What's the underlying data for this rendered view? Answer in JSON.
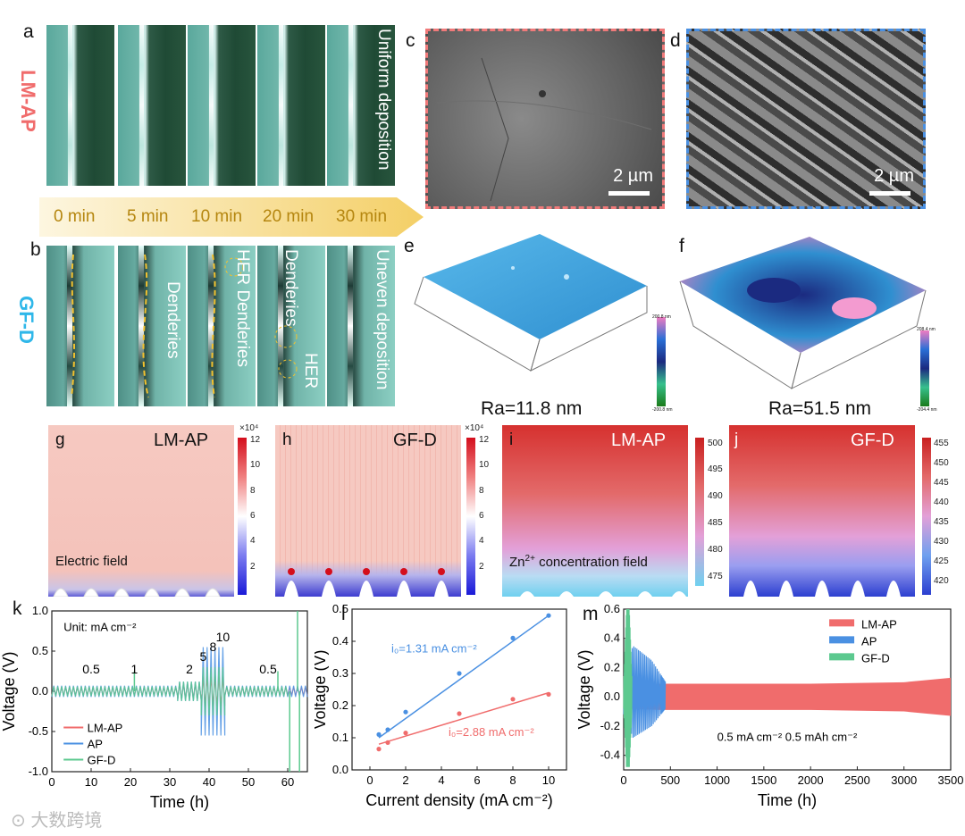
{
  "panels": {
    "a": "a",
    "b": "b",
    "c": "c",
    "d": "d",
    "e": "e",
    "f": "f",
    "g": "g",
    "h": "h",
    "i": "i",
    "j": "j",
    "k": "k",
    "l": "l",
    "m": "m"
  },
  "row_labels": {
    "top": "LM-AP",
    "bottom": "GF-D"
  },
  "colors": {
    "lmap": "#f06c6c",
    "gfd": "#2fb7e9",
    "ap": "#4a90e2",
    "gfd_line": "#5cc98f",
    "time_text": "#b5860f"
  },
  "time_labels": [
    "0 min",
    "5 min",
    "10 min",
    "20 min",
    "30 min"
  ],
  "micro_a": {
    "text": "Uniform deposition"
  },
  "micro_b": {
    "t1": "Denderies",
    "t2": "HER Denderies",
    "t3": "Denderies",
    "t3b": "HER",
    "t4": "Uneven deposition"
  },
  "sem": {
    "scale": "2 µm"
  },
  "afm": {
    "e_ra": "Ra=11.8 nm",
    "f_ra": "Ra=51.5 nm",
    "e_top": "200.8 nm",
    "e_bot": "-200.8 nm",
    "f_top": "208.4 nm",
    "f_bot": "-204.4 nm"
  },
  "fields": {
    "g_title": "LM-AP",
    "h_title": "GF-D",
    "i_title": "LM-AP",
    "j_title": "GF-D",
    "g_caption": "Electric field",
    "i_caption_pre": "Zn",
    "i_caption_sup": "2+",
    "i_caption_post": " concentration field",
    "ef_exp": "×10⁴",
    "ef_ticks": [
      "12",
      "10",
      "8",
      "6",
      "4",
      "2"
    ],
    "i_ticks": [
      "500",
      "495",
      "490",
      "485",
      "480",
      "475"
    ],
    "j_ticks": [
      "455",
      "450",
      "445",
      "440",
      "435",
      "430",
      "425",
      "420"
    ]
  },
  "chart_data": [
    {
      "type": "line",
      "panel": "k",
      "title": "",
      "xlabel": "Time (h)",
      "ylabel": "Voltage (V)",
      "xlim": [
        0,
        65
      ],
      "ylim": [
        -1.0,
        1.0
      ],
      "xticks": [
        "0",
        "10",
        "20",
        "30",
        "40",
        "50",
        "60"
      ],
      "yticks": [
        "1.0",
        "0.5",
        "0.0",
        "-0.5",
        "-1.0"
      ],
      "annotation": "Unit: mA cm⁻²",
      "rate_labels": [
        {
          "x": 10,
          "label": "0.5"
        },
        {
          "x": 21,
          "label": "1"
        },
        {
          "x": 35,
          "label": "2"
        },
        {
          "x": 38.5,
          "label": "5"
        },
        {
          "x": 41,
          "label": "8"
        },
        {
          "x": 43.5,
          "label": "10"
        },
        {
          "x": 55,
          "label": "0.5"
        }
      ],
      "series": [
        {
          "name": "LM-AP",
          "segments": [
            [
              0,
              32,
              0.05
            ],
            [
              32,
              38,
              0.09
            ],
            [
              38,
              44,
              0.18
            ],
            [
              44,
              65,
              0.05
            ]
          ]
        },
        {
          "name": "AP",
          "segments": [
            [
              0,
              32,
              0.07
            ],
            [
              32,
              38,
              0.12
            ],
            [
              38,
              44,
              0.55
            ],
            [
              44,
              65,
              0.07
            ]
          ]
        },
        {
          "name": "GF-D",
          "segments": [
            [
              0,
              32,
              0.06
            ],
            [
              32,
              38,
              0.12
            ],
            [
              38,
              44,
              0.3
            ],
            [
              44,
              60,
              0.06
            ]
          ],
          "spikes": [
            [
              21,
              0.25
            ],
            [
              57.5,
              0.25
            ],
            [
              60.5,
              -1.0
            ],
            [
              62.5,
              1.0
            ],
            [
              63,
              -1.0
            ]
          ]
        }
      ]
    },
    {
      "type": "scatter",
      "panel": "l",
      "xlabel": "Current density (mA cm⁻²)",
      "ylabel": "Voltage (V)",
      "xlim": [
        -1,
        11
      ],
      "ylim": [
        0,
        0.5
      ],
      "xticks": [
        "0",
        "2",
        "4",
        "6",
        "8",
        "10"
      ],
      "yticks": [
        "0.0",
        "0.1",
        "0.2",
        "0.3",
        "0.4",
        "0.5"
      ],
      "series": [
        {
          "name": "AP",
          "label": "i₀=1.31 mA cm⁻²",
          "x": [
            0.5,
            1,
            2,
            5,
            8,
            10
          ],
          "y": [
            0.11,
            0.125,
            0.18,
            0.3,
            0.41,
            0.48
          ],
          "fit": [
            [
              0.5,
              0.1
            ],
            [
              10,
              0.48
            ]
          ]
        },
        {
          "name": "LM-AP",
          "label": "i₀=2.88 mA cm⁻²",
          "x": [
            0.5,
            1,
            2,
            5,
            8,
            10
          ],
          "y": [
            0.065,
            0.085,
            0.115,
            0.175,
            0.22,
            0.235
          ],
          "fit": [
            [
              0.5,
              0.08
            ],
            [
              10,
              0.24
            ]
          ]
        }
      ]
    },
    {
      "type": "line",
      "panel": "m",
      "xlabel": "Time (h)",
      "ylabel": "Voltage (V)",
      "xlim": [
        0,
        3500
      ],
      "ylim": [
        -0.5,
        0.6
      ],
      "xticks": [
        "0",
        "500",
        "1000",
        "1500",
        "2000",
        "2500",
        "3000",
        "3500"
      ],
      "yticks": [
        "0.6",
        "0.4",
        "0.2",
        "0.0",
        "-0.2",
        "-0.4"
      ],
      "annotation": "0.5 mA cm⁻² 0.5 mAh cm⁻²",
      "legend": [
        "LM-AP",
        "AP",
        "GF-D"
      ],
      "series": [
        {
          "name": "LM-AP",
          "x": [
            0,
            400,
            1000,
            2000,
            3000,
            3500
          ],
          "amplitude": [
            0.08,
            0.09,
            0.09,
            0.09,
            0.1,
            0.13
          ]
        },
        {
          "name": "AP",
          "x": [
            0,
            100,
            200,
            300,
            400,
            450
          ],
          "amplitude": [
            0.15,
            0.35,
            0.3,
            0.25,
            0.15,
            0.1
          ]
        },
        {
          "name": "GF-D",
          "x": [
            0,
            30,
            60,
            90
          ],
          "amplitude": [
            0.1,
            0.6,
            0.6,
            0.1
          ]
        }
      ]
    }
  ]
}
